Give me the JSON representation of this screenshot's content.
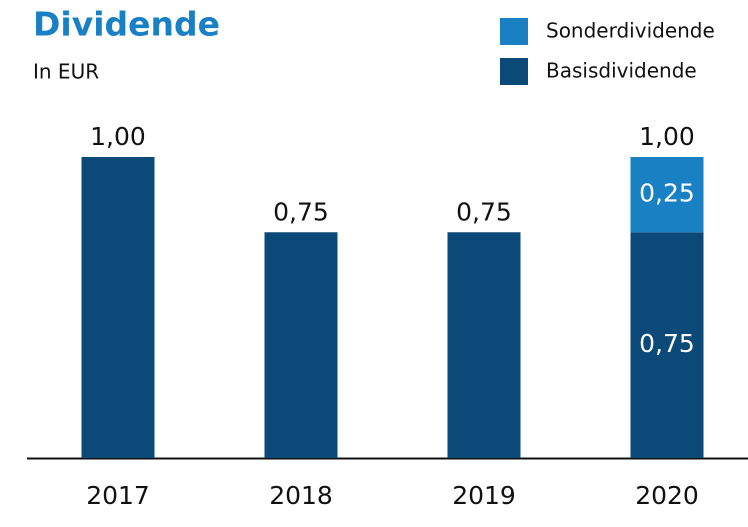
{
  "chart_data": {
    "type": "stacked_bar",
    "title": "Dividende",
    "subtitle": "In EUR",
    "categories": [
      "2017",
      "2018",
      "2019",
      "2020"
    ],
    "series": [
      {
        "name": "Basisdividende",
        "color": "#0b4a78",
        "values": [
          1.0,
          0.75,
          0.75,
          0.75
        ],
        "value_labels": [
          "1,00",
          "0,75",
          "0,75",
          "0,75"
        ]
      },
      {
        "name": "Sonderdividende",
        "color": "#1a80c4",
        "values": [
          null,
          null,
          null,
          0.25
        ],
        "value_labels": [
          null,
          null,
          null,
          "0,25"
        ]
      }
    ],
    "totals": [
      null,
      null,
      null,
      1.0
    ],
    "total_labels": [
      null,
      null,
      null,
      "1,00"
    ],
    "ylim": [
      0,
      1.0
    ]
  }
}
